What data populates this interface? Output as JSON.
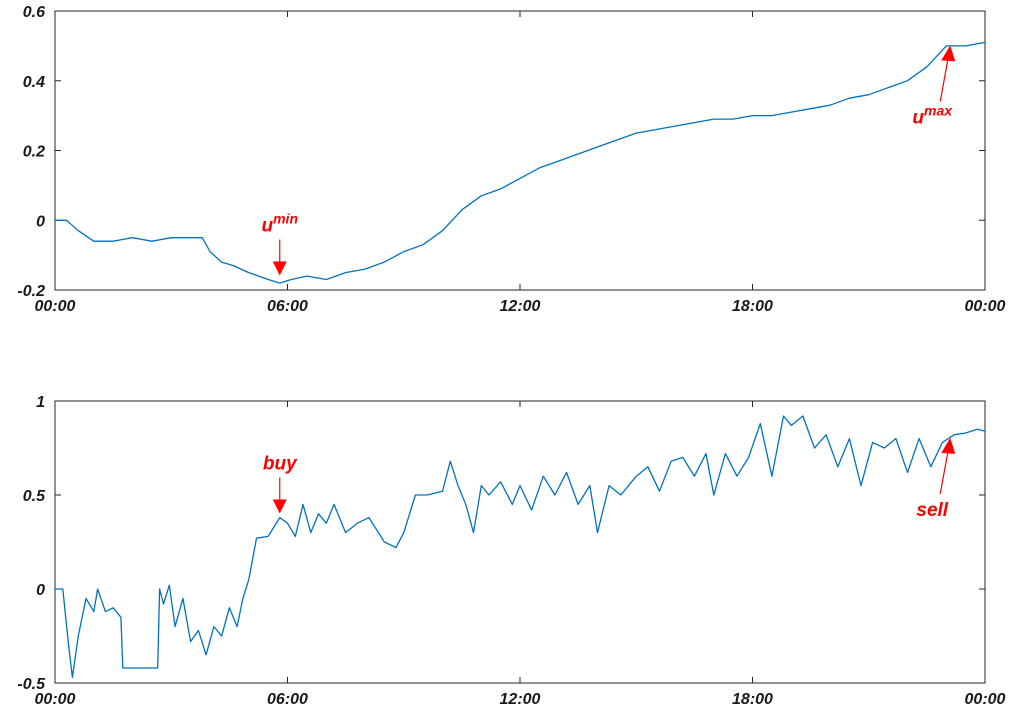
{
  "chart_data": [
    {
      "type": "line",
      "xlim": [
        0,
        24
      ],
      "ylim": [
        -0.2,
        0.6
      ],
      "x_ticks": [
        0,
        6,
        12,
        18,
        24
      ],
      "x_tick_labels": [
        "00:00",
        "06:00",
        "12:00",
        "18:00",
        "00:00"
      ],
      "y_ticks": [
        -0.2,
        0,
        0.2,
        0.4,
        0.6
      ],
      "y_tick_labels": [
        "-0.2",
        "0",
        "0.2",
        "0.4",
        "0.6"
      ],
      "colors": {
        "line": "#0072bd",
        "annotation": "#ff0000"
      },
      "series": [
        {
          "x": [
            0,
            0.3,
            0.6,
            1.0,
            1.5,
            2.0,
            2.5,
            3.0,
            3.5,
            3.8,
            4.0,
            4.3,
            4.6,
            5.0,
            5.5,
            5.8,
            6.1,
            6.5,
            7.0,
            7.5,
            8.0,
            8.5,
            9.0,
            9.5,
            10.0,
            10.5,
            11.0,
            11.5,
            12.0,
            12.5,
            13.0,
            13.5,
            14.0,
            14.5,
            15.0,
            15.5,
            16.0,
            16.5,
            17.0,
            17.5,
            18.0,
            18.5,
            19.0,
            19.5,
            20.0,
            20.5,
            21.0,
            21.5,
            22.0,
            22.5,
            23.0,
            23.5,
            24.0
          ],
          "y": [
            0.0,
            0.0,
            -0.03,
            -0.06,
            -0.06,
            -0.05,
            -0.06,
            -0.05,
            -0.05,
            -0.05,
            -0.09,
            -0.12,
            -0.13,
            -0.15,
            -0.17,
            -0.18,
            -0.17,
            -0.16,
            -0.17,
            -0.15,
            -0.14,
            -0.12,
            -0.09,
            -0.07,
            -0.03,
            0.03,
            0.07,
            0.09,
            0.12,
            0.15,
            0.17,
            0.19,
            0.21,
            0.23,
            0.25,
            0.26,
            0.27,
            0.28,
            0.29,
            0.29,
            0.3,
            0.3,
            0.31,
            0.32,
            0.33,
            0.35,
            0.36,
            0.38,
            0.4,
            0.44,
            0.5,
            0.5,
            0.51
          ]
        }
      ],
      "annotations": [
        {
          "label": "u",
          "sup": "min",
          "x": 5.8,
          "y": -0.17,
          "dir": "down"
        },
        {
          "label": "u",
          "sup": "max",
          "x": 23.0,
          "y": 0.51,
          "dir": "up"
        }
      ]
    },
    {
      "type": "line",
      "xlim": [
        0,
        24
      ],
      "ylim": [
        -0.5,
        1
      ],
      "x_ticks": [
        0,
        6,
        12,
        18,
        24
      ],
      "x_tick_labels": [
        "00:00",
        "06:00",
        "12:00",
        "18:00",
        "00:00"
      ],
      "y_ticks": [
        -0.5,
        0,
        0.5,
        1
      ],
      "y_tick_labels": [
        "-0.5",
        "0",
        "0.5",
        "1"
      ],
      "colors": {
        "line": "#0072bd",
        "annotation": "#ff0000"
      },
      "series": [
        {
          "x": [
            0,
            0.2,
            0.35,
            0.45,
            0.6,
            0.8,
            1.0,
            1.1,
            1.3,
            1.5,
            1.7,
            1.75,
            2.5,
            2.65,
            2.7,
            2.8,
            2.95,
            3.1,
            3.3,
            3.5,
            3.7,
            3.9,
            4.1,
            4.3,
            4.5,
            4.7,
            4.85,
            5.0,
            5.2,
            5.5,
            5.8,
            6.0,
            6.2,
            6.4,
            6.6,
            6.8,
            7.0,
            7.2,
            7.5,
            7.8,
            8.1,
            8.5,
            8.8,
            9.0,
            9.3,
            9.6,
            10.0,
            10.2,
            10.4,
            10.6,
            10.8,
            11.0,
            11.2,
            11.5,
            11.8,
            12.0,
            12.3,
            12.6,
            12.9,
            13.2,
            13.5,
            13.8,
            14.0,
            14.3,
            14.6,
            15.0,
            15.3,
            15.6,
            15.9,
            16.2,
            16.5,
            16.8,
            17.0,
            17.3,
            17.6,
            17.9,
            18.2,
            18.5,
            18.8,
            19.0,
            19.3,
            19.6,
            19.9,
            20.2,
            20.5,
            20.8,
            21.1,
            21.4,
            21.7,
            22.0,
            22.3,
            22.6,
            22.9,
            23.2,
            23.5,
            23.8,
            24.0
          ],
          "y": [
            0.0,
            0.0,
            -0.3,
            -0.47,
            -0.25,
            -0.05,
            -0.12,
            0.0,
            -0.12,
            -0.1,
            -0.15,
            -0.42,
            -0.42,
            -0.42,
            0.0,
            -0.08,
            0.02,
            -0.2,
            -0.05,
            -0.28,
            -0.22,
            -0.35,
            -0.2,
            -0.25,
            -0.1,
            -0.2,
            -0.05,
            0.05,
            0.27,
            0.28,
            0.38,
            0.35,
            0.28,
            0.45,
            0.3,
            0.4,
            0.35,
            0.45,
            0.3,
            0.35,
            0.38,
            0.25,
            0.22,
            0.3,
            0.5,
            0.5,
            0.52,
            0.68,
            0.55,
            0.45,
            0.3,
            0.55,
            0.5,
            0.57,
            0.45,
            0.55,
            0.42,
            0.6,
            0.5,
            0.62,
            0.45,
            0.55,
            0.3,
            0.55,
            0.5,
            0.6,
            0.65,
            0.52,
            0.68,
            0.7,
            0.6,
            0.72,
            0.5,
            0.72,
            0.6,
            0.7,
            0.88,
            0.6,
            0.92,
            0.87,
            0.92,
            0.75,
            0.82,
            0.65,
            0.8,
            0.55,
            0.78,
            0.75,
            0.8,
            0.62,
            0.8,
            0.65,
            0.78,
            0.82,
            0.83,
            0.85,
            0.84
          ]
        }
      ],
      "annotations": [
        {
          "label": "buy",
          "x": 5.8,
          "y": 0.38,
          "dir": "down"
        },
        {
          "label": "sell",
          "x": 23.0,
          "y": 0.82,
          "dir": "up"
        }
      ]
    }
  ]
}
